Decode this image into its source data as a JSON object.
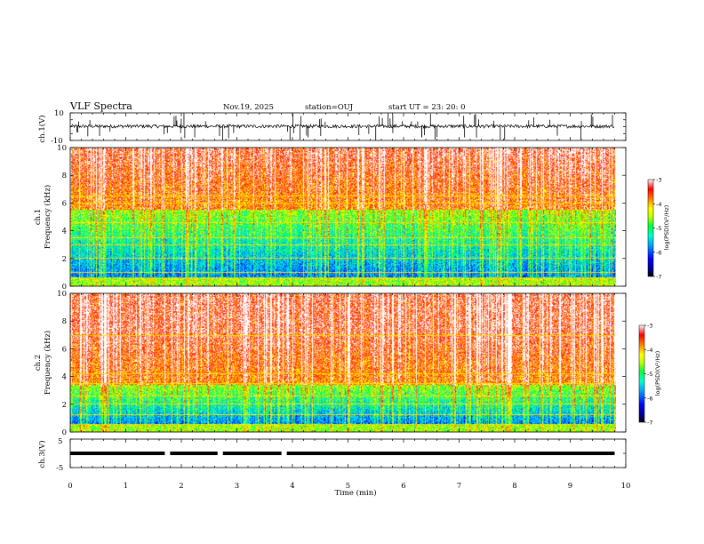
{
  "header": {
    "title": "VLF Spectra",
    "date": "Nov.19, 2025",
    "station": "station=OUJ",
    "start": "start  UT  =   23: 20: 0"
  },
  "colors": {
    "spectrogram_scale": [
      "#00008b",
      "#0000ff",
      "#0080ff",
      "#00e5ff",
      "#00ff80",
      "#40ff00",
      "#c8ff00",
      "#ffff00",
      "#ffb000",
      "#ff4000",
      "#ff0000",
      "#ffb0b0",
      "#ffffff"
    ]
  },
  "chart_data": [
    {
      "id": "ch1-waveform",
      "type": "line",
      "ylabel": "ch.1(V)",
      "ylim": [
        -10,
        10
      ],
      "yticks": [
        {
          "v": 10,
          "label": "10"
        },
        {
          "v": -10,
          "label": "-10"
        }
      ],
      "baseline_v": 0.3,
      "noise_amplitude_v": 1.2,
      "spike_amplitude_v": 10
    },
    {
      "id": "ch1-spectrogram",
      "type": "heatmap",
      "ylabel_top": "ch.1",
      "ylabel": "Frequency  (kHz)",
      "ylim": [
        0,
        10
      ],
      "yticks": [
        "0",
        "2",
        "4",
        "6",
        "8",
        "10"
      ],
      "color_range": [
        -7,
        -3
      ],
      "colorbar_ticks": [
        "-3",
        "-4",
        "-5",
        "-6",
        "-7"
      ],
      "colorbar_label": "log(PSD)(V²/Hz)",
      "quiet_band_khz": [
        0.6,
        5.5
      ],
      "lines_khz": [
        0.5,
        1.0,
        2.0,
        3.0,
        3.5,
        4.6,
        6.0,
        6.5
      ]
    },
    {
      "id": "ch2-spectrogram",
      "type": "heatmap",
      "ylabel_top": "ch.2",
      "ylabel": "Frequency  (kHz)",
      "ylim": [
        0,
        10
      ],
      "yticks": [
        "0",
        "2",
        "4",
        "6",
        "8",
        "10"
      ],
      "color_range": [
        -7,
        -3
      ],
      "colorbar_ticks": [
        "-3",
        "-4",
        "-5",
        "-6",
        "-7"
      ],
      "colorbar_label": "log(PSD)(V²/Hz)",
      "quiet_band_khz": [
        0.5,
        3.4
      ],
      "lines_khz": [
        0.5,
        1.2,
        2.0,
        2.6,
        3.5,
        4.2,
        7.0
      ]
    },
    {
      "id": "ch3-waveform",
      "type": "line",
      "ylabel": "ch.3(V)",
      "ylim": [
        -5,
        5
      ],
      "yticks": [
        {
          "v": 5,
          "label": "5"
        },
        {
          "v": -5,
          "label": "-5"
        }
      ],
      "level_v": 0,
      "gaps_min": [
        1.75,
        2.7,
        3.85
      ]
    }
  ],
  "x_axis": {
    "label": "Time  (min)",
    "range": [
      0,
      10
    ],
    "data_end_min": 9.8,
    "ticks": [
      "0",
      "1",
      "2",
      "3",
      "4",
      "5",
      "6",
      "7",
      "8",
      "9",
      "10"
    ]
  }
}
